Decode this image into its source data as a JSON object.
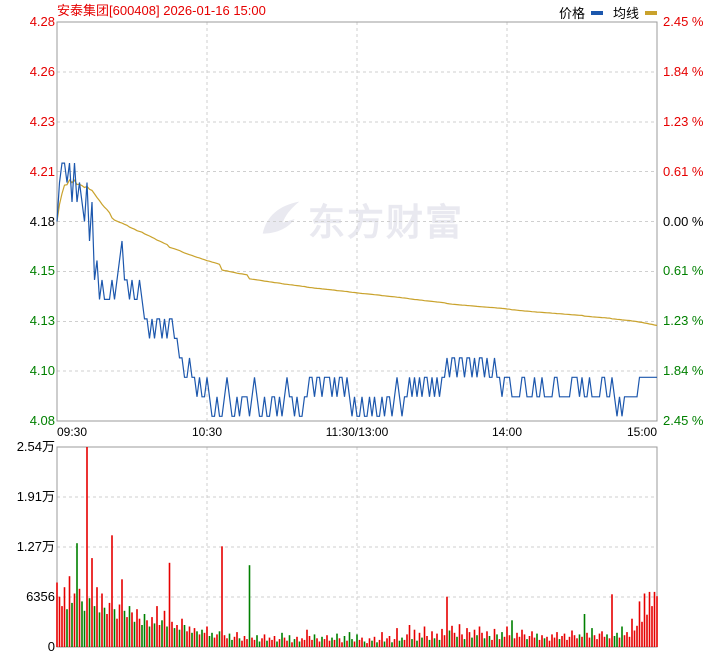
{
  "header": {
    "title": "安泰集团[600408] 2026-01-16 15:00",
    "legend": [
      {
        "label": "价格",
        "color_key": "price"
      },
      {
        "label": "均线",
        "color_key": "avg"
      }
    ]
  },
  "watermark_text": "东方财富",
  "colors": {
    "up": "#e60000",
    "down": "#008000",
    "flat": "#000000",
    "price": "#1c57ad",
    "avg": "#c9a22c",
    "grid": "#cfcfcf",
    "border": "#9b9b9b",
    "watermark": "#e9e9f0"
  },
  "chart_data": [
    {
      "type": "line",
      "title": "intraday price (分时)",
      "prev_close": 4.18,
      "pct_range": 2.45,
      "minutes_total": 240,
      "x_axis": {
        "labels": [
          "09:30",
          "10:30",
          "11:30/13:00",
          "14:00",
          "15:00"
        ]
      },
      "y_axis_left": {
        "labels": [
          {
            "text": "4.28",
            "tone": "up"
          },
          {
            "text": "4.26",
            "tone": "up"
          },
          {
            "text": "4.23",
            "tone": "up"
          },
          {
            "text": "4.21",
            "tone": "up"
          },
          {
            "text": "4.18",
            "tone": "flat"
          },
          {
            "text": "4.15",
            "tone": "down"
          },
          {
            "text": "4.13",
            "tone": "down"
          },
          {
            "text": "4.10",
            "tone": "down"
          },
          {
            "text": "4.08",
            "tone": "down"
          }
        ]
      },
      "y_axis_right": {
        "labels": [
          {
            "text": "2.45 %",
            "tone": "up"
          },
          {
            "text": "1.84 %",
            "tone": "up"
          },
          {
            "text": "1.23 %",
            "tone": "up"
          },
          {
            "text": "0.61 %",
            "tone": "up"
          },
          {
            "text": "0.00 %",
            "tone": "flat"
          },
          {
            "text": "0.61 %",
            "tone": "down"
          },
          {
            "text": "1.23 %",
            "tone": "down"
          },
          {
            "text": "1.84 %",
            "tone": "down"
          },
          {
            "text": "2.45 %",
            "tone": "down"
          }
        ]
      },
      "series": [
        {
          "name": "价格",
          "values": [
            4.18,
            4.2,
            4.21,
            4.21,
            4.2,
            4.21,
            4.19,
            4.21,
            4.19,
            4.2,
            4.19,
            4.18,
            4.2,
            4.17,
            4.19,
            4.15,
            4.16,
            4.14,
            4.15,
            4.14,
            4.14,
            4.14,
            4.15,
            4.14,
            4.15,
            4.16,
            4.17,
            4.15,
            4.15,
            4.14,
            4.15,
            4.14,
            4.14,
            4.15,
            4.14,
            4.13,
            4.13,
            4.12,
            4.13,
            4.12,
            4.13,
            4.13,
            4.12,
            4.13,
            4.12,
            4.13,
            4.13,
            4.12,
            4.12,
            4.11,
            4.11,
            4.1,
            4.1,
            4.11,
            4.1,
            4.1,
            4.09,
            4.1,
            4.09,
            4.09,
            4.1,
            4.09,
            4.08,
            4.08,
            4.09,
            4.08,
            4.08,
            4.09,
            4.1,
            4.09,
            4.08,
            4.08,
            4.09,
            4.08,
            4.09,
            4.09,
            4.09,
            4.08,
            4.09,
            4.1,
            4.09,
            4.08,
            4.08,
            4.09,
            4.08,
            4.08,
            4.09,
            4.09,
            4.08,
            4.09,
            4.08,
            4.09,
            4.1,
            4.09,
            4.09,
            4.08,
            4.09,
            4.08,
            4.08,
            4.09,
            4.09,
            4.1,
            4.1,
            4.09,
            4.1,
            4.1,
            4.09,
            4.1,
            4.1,
            4.1,
            4.09,
            4.1,
            4.09,
            4.1,
            4.1,
            4.09,
            4.1,
            4.09,
            4.08,
            4.09,
            4.08,
            4.08,
            4.09,
            4.08,
            4.08,
            4.09,
            4.08,
            4.09,
            4.08,
            4.08,
            4.09,
            4.08,
            4.09,
            4.09,
            4.08,
            4.09,
            4.1,
            4.09,
            4.08,
            4.09,
            4.09,
            4.1,
            4.09,
            4.1,
            4.09,
            4.1,
            4.09,
            4.1,
            4.1,
            4.09,
            4.1,
            4.09,
            4.1,
            4.09,
            4.1,
            4.1,
            4.11,
            4.1,
            4.11,
            4.11,
            4.1,
            4.11,
            4.11,
            4.1,
            4.11,
            4.11,
            4.1,
            4.11,
            4.1,
            4.11,
            4.11,
            4.1,
            4.11,
            4.1,
            4.1,
            4.11,
            4.1,
            4.1,
            4.09,
            4.1,
            4.1,
            4.1,
            4.09,
            4.09,
            4.09,
            4.09,
            4.1,
            4.1,
            4.09,
            4.09,
            4.09,
            4.1,
            4.09,
            4.09,
            4.1,
            4.09,
            4.09,
            4.09,
            4.09,
            4.1,
            4.1,
            4.09,
            4.09,
            4.09,
            4.09,
            4.09,
            4.1,
            4.1,
            4.1,
            4.09,
            4.1,
            4.09,
            4.09,
            4.1,
            4.09,
            4.09,
            4.09,
            4.09,
            4.1,
            4.1,
            4.09,
            4.09,
            4.1,
            4.09,
            4.08,
            4.09,
            4.08,
            4.09,
            4.09,
            4.09,
            4.09,
            4.09,
            4.09,
            4.1,
            4.1,
            4.1,
            4.1,
            4.1,
            4.1,
            4.1,
            4.1
          ]
        },
        {
          "name": "均线",
          "derived": "vwap_of_price_and_volume"
        }
      ]
    },
    {
      "type": "bar",
      "title": "volume (成交量, 手)",
      "axis_max": 25424,
      "y_axis": {
        "labels": [
          "2.54万",
          "1.91万",
          "1.27万",
          "6356",
          "0"
        ]
      },
      "color_rule": "up_or_flat_red_else_green",
      "values": [
        8200,
        6400,
        5200,
        7600,
        4800,
        9000,
        5600,
        6800,
        13200,
        7400,
        5800,
        4600,
        25424,
        6200,
        11300,
        5200,
        7600,
        4400,
        6800,
        5000,
        4200,
        5600,
        14200,
        4800,
        3600,
        5400,
        8600,
        4600,
        3800,
        5200,
        4400,
        3200,
        4800,
        3600,
        2800,
        4200,
        3400,
        2600,
        3800,
        3000,
        5200,
        2800,
        3400,
        4600,
        2600,
        10700,
        3200,
        2400,
        2800,
        2200,
        3600,
        2800,
        2000,
        2600,
        1800,
        2400,
        2000,
        1600,
        2200,
        1800,
        2600,
        1400,
        1800,
        1200,
        1600,
        2000,
        12800,
        1500,
        1100,
        1700,
        900,
        1300,
        1900,
        1100,
        800,
        1400,
        1000,
        10400,
        1200,
        900,
        1500,
        700,
        1100,
        1600,
        800,
        1200,
        900,
        1400,
        700,
        1000,
        1800,
        1200,
        800,
        1500,
        600,
        1000,
        1300,
        700,
        1100,
        900,
        2200,
        1400,
        900,
        1600,
        1100,
        700,
        1300,
        1000,
        1500,
        800,
        1200,
        900,
        1700,
        1100,
        600,
        1400,
        800,
        1900,
        1000,
        700,
        1600,
        900,
        1200,
        700,
        500,
        1100,
        800,
        1300,
        600,
        900,
        1900,
        700,
        1100,
        1400,
        600,
        1000,
        2400,
        800,
        1200,
        900,
        1600,
        2800,
        1000,
        2200,
        800,
        1800,
        1200,
        2600,
        1400,
        900,
        2000,
        1100,
        1700,
        900,
        2300,
        1500,
        6400,
        2100,
        2700,
        1800,
        1300,
        2900,
        1600,
        1000,
        2400,
        1900,
        1200,
        2200,
        1500,
        2600,
        1800,
        1100,
        2000,
        1400,
        900,
        2300,
        1600,
        1000,
        1900,
        1300,
        2600,
        1500,
        3400,
        1100,
        1800,
        1300,
        2200,
        1600,
        1000,
        1400,
        2000,
        1200,
        1700,
        900,
        1500,
        1100,
        1300,
        800,
        1600,
        1200,
        1900,
        1000,
        1400,
        1700,
        900,
        1300,
        2100,
        1500,
        1100,
        1600,
        1300,
        4200,
        1800,
        1200,
        2400,
        1500,
        1000,
        1700,
        2000,
        1300,
        1600,
        1100,
        6700,
        1400,
        1800,
        1200,
        2600,
        1500,
        1900,
        1300,
        3600,
        2100,
        2700,
        5800,
        3200,
        6800,
        4100,
        7000,
        5200,
        7000,
        6459
      ]
    }
  ]
}
